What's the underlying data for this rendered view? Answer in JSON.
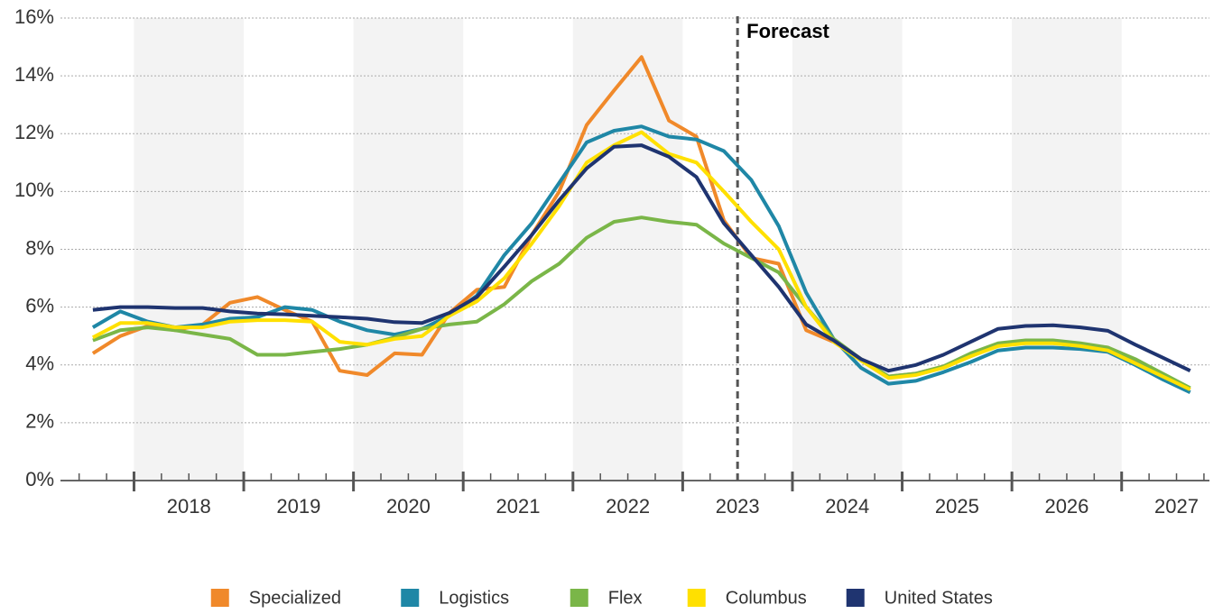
{
  "chart_data": {
    "type": "line",
    "x": [
      2017.625,
      2017.875,
      2018.125,
      2018.375,
      2018.625,
      2018.875,
      2019.125,
      2019.375,
      2019.625,
      2019.875,
      2020.125,
      2020.375,
      2020.625,
      2020.875,
      2021.125,
      2021.375,
      2021.625,
      2021.875,
      2022.125,
      2022.375,
      2022.625,
      2022.875,
      2023.125,
      2023.375,
      2023.625,
      2023.875,
      2024.125,
      2024.375,
      2024.625,
      2024.875,
      2025.125,
      2025.375,
      2025.625,
      2025.875,
      2026.125,
      2026.375,
      2026.625,
      2026.875,
      2027.125,
      2027.375,
      2027.625
    ],
    "xlim": [
      2017.33,
      2027.8
    ],
    "xticks": [
      {
        "value": 2018.5,
        "label": "2018"
      },
      {
        "value": 2019.5,
        "label": "2019"
      },
      {
        "value": 2020.5,
        "label": "2020"
      },
      {
        "value": 2021.5,
        "label": "2021"
      },
      {
        "value": 2022.5,
        "label": "2022"
      },
      {
        "value": 2023.5,
        "label": "2023"
      },
      {
        "value": 2024.5,
        "label": "2024"
      },
      {
        "value": 2025.5,
        "label": "2025"
      },
      {
        "value": 2026.5,
        "label": "2026"
      },
      {
        "value": 2027.5,
        "label": "2027"
      }
    ],
    "ylim": [
      0,
      16
    ],
    "yticks": [
      {
        "value": 0,
        "label": "0%"
      },
      {
        "value": 2,
        "label": "2%"
      },
      {
        "value": 4,
        "label": "4%"
      },
      {
        "value": 6,
        "label": "6%"
      },
      {
        "value": 8,
        "label": "8%"
      },
      {
        "value": 10,
        "label": "10%"
      },
      {
        "value": 12,
        "label": "12%"
      },
      {
        "value": 14,
        "label": "14%"
      },
      {
        "value": 16,
        "label": "16%"
      }
    ],
    "grid": true,
    "forecast_x": 2023.5,
    "annotation": "Forecast",
    "legend": "bottom",
    "series": [
      {
        "name": "Specialized",
        "color": "#f0892a",
        "values": [
          4.4,
          5.0,
          5.35,
          5.2,
          5.4,
          6.15,
          6.35,
          5.9,
          5.5,
          3.8,
          3.65,
          4.4,
          4.35,
          5.8,
          6.6,
          6.7,
          8.5,
          10.0,
          12.3,
          13.5,
          14.65,
          12.45,
          11.9,
          9.0,
          7.7,
          7.5,
          5.2,
          4.8,
          4.2,
          3.6,
          3.7,
          3.95,
          4.3,
          4.7,
          4.8,
          4.8,
          4.7,
          4.6,
          4.1,
          3.6,
          3.15
        ]
      },
      {
        "name": "Logistics",
        "color": "#1f87a6",
        "values": [
          5.3,
          5.85,
          5.5,
          5.3,
          5.4,
          5.6,
          5.65,
          6.0,
          5.9,
          5.5,
          5.2,
          5.05,
          5.25,
          5.7,
          6.4,
          7.8,
          8.9,
          10.3,
          11.7,
          12.1,
          12.25,
          11.9,
          11.8,
          11.4,
          10.4,
          8.8,
          6.5,
          4.9,
          3.9,
          3.35,
          3.45,
          3.75,
          4.1,
          4.5,
          4.6,
          4.6,
          4.55,
          4.45,
          4.0,
          3.5,
          3.05
        ]
      },
      {
        "name": "Flex",
        "color": "#7ab648",
        "values": [
          4.85,
          5.2,
          5.3,
          5.2,
          5.05,
          4.9,
          4.35,
          4.35,
          4.45,
          4.55,
          4.7,
          4.95,
          5.25,
          5.4,
          5.5,
          6.1,
          6.9,
          7.5,
          8.4,
          8.95,
          9.1,
          8.95,
          8.85,
          8.2,
          7.7,
          7.2,
          6.0,
          4.9,
          4.2,
          3.6,
          3.7,
          3.95,
          4.4,
          4.75,
          4.85,
          4.85,
          4.75,
          4.6,
          4.2,
          3.7,
          3.2
        ]
      },
      {
        "name": "Columbus",
        "color": "#ffe000",
        "values": [
          4.95,
          5.45,
          5.45,
          5.3,
          5.3,
          5.5,
          5.55,
          5.55,
          5.5,
          4.8,
          4.7,
          4.9,
          5.0,
          5.7,
          6.2,
          7.0,
          8.2,
          9.5,
          11.0,
          11.6,
          12.05,
          11.3,
          11.0,
          10.0,
          8.95,
          8.0,
          6.0,
          4.8,
          4.15,
          3.55,
          3.65,
          3.9,
          4.3,
          4.65,
          4.75,
          4.75,
          4.65,
          4.5,
          4.05,
          3.6,
          3.15
        ]
      },
      {
        "name": "United States",
        "color": "#1f3470",
        "values": [
          5.9,
          6.0,
          6.0,
          5.97,
          5.97,
          5.85,
          5.78,
          5.75,
          5.7,
          5.65,
          5.6,
          5.48,
          5.45,
          5.8,
          6.35,
          7.4,
          8.5,
          9.7,
          10.8,
          11.55,
          11.6,
          11.2,
          10.5,
          8.9,
          7.8,
          6.7,
          5.4,
          4.85,
          4.2,
          3.8,
          4.0,
          4.35,
          4.8,
          5.25,
          5.35,
          5.37,
          5.3,
          5.18,
          4.7,
          4.25,
          3.8
        ]
      }
    ]
  }
}
